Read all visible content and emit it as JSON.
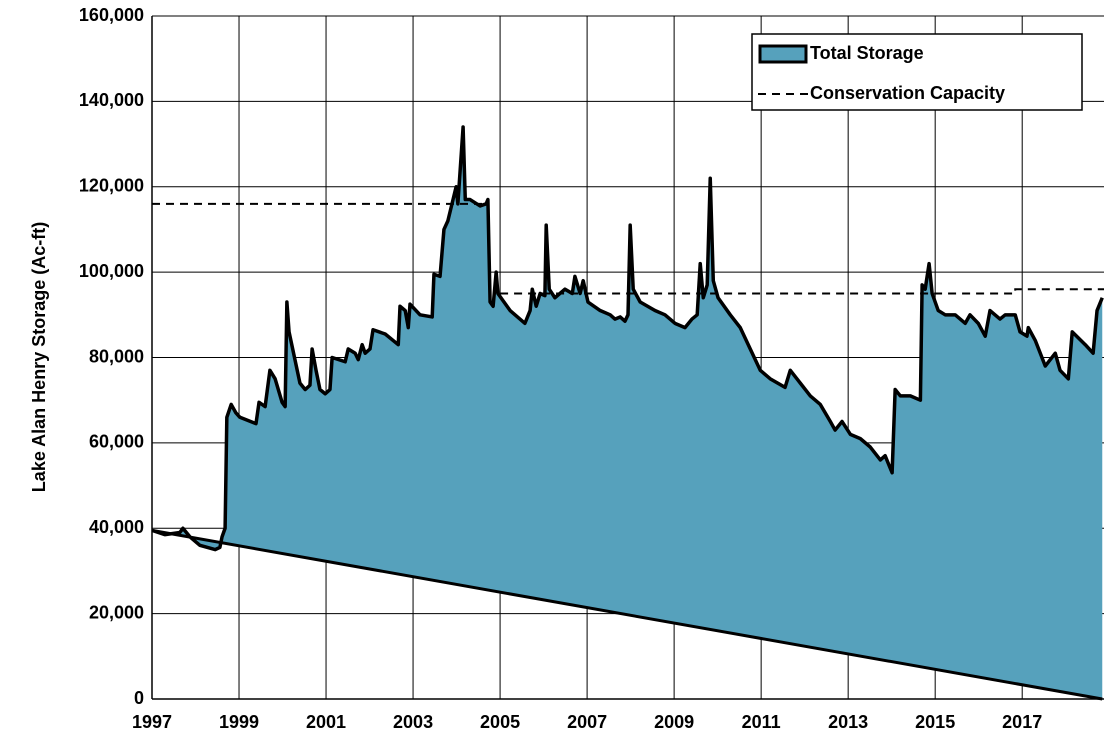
{
  "chart_data": {
    "type": "area",
    "y_label": "Lake Alan Henry Storage (Ac-ft)",
    "xlim": [
      1997,
      2018.88
    ],
    "xticks": [
      1997,
      1999,
      2001,
      2003,
      2005,
      2007,
      2009,
      2011,
      2013,
      2015,
      2017
    ],
    "ylim": [
      0,
      160000
    ],
    "yticks": [
      {
        "value": 0,
        "label": "0"
      },
      {
        "value": 20000,
        "label": "20,000"
      },
      {
        "value": 40000,
        "label": "40,000"
      },
      {
        "value": 60000,
        "label": "60,000"
      },
      {
        "value": 80000,
        "label": "80,000"
      },
      {
        "value": 100000,
        "label": "100,000"
      },
      {
        "value": 120000,
        "label": "120,000"
      },
      {
        "value": 140000,
        "label": "140,000"
      },
      {
        "value": 160000,
        "label": "160,000"
      }
    ],
    "grid": true,
    "legend": "top-right",
    "series": [
      {
        "name": "Total Storage",
        "type": "area",
        "color": "#56a1bc",
        "line_color": "#000000",
        "x": [
          1997.0,
          1997.3,
          1997.64,
          1997.71,
          1997.87,
          1998.1,
          1998.45,
          1998.56,
          1998.61,
          1998.68,
          1998.72,
          1998.82,
          1998.93,
          1999.02,
          1999.39,
          1999.46,
          1999.6,
          1999.71,
          1999.83,
          1999.99,
          2000.06,
          2000.1,
          2000.15,
          2000.4,
          2000.52,
          2000.63,
          2000.68,
          2000.77,
          2000.86,
          2000.98,
          2001.09,
          2001.14,
          2001.44,
          2001.51,
          2001.67,
          2001.74,
          2001.83,
          2001.9,
          2002.01,
          2002.08,
          2002.36,
          2002.66,
          2002.7,
          2002.82,
          2002.89,
          2002.93,
          2003.16,
          2003.44,
          2003.48,
          2003.62,
          2003.71,
          2003.8,
          2003.99,
          2004.03,
          2004.15,
          2004.2,
          2004.31,
          2004.54,
          2004.68,
          2004.72,
          2004.77,
          2004.84,
          2004.91,
          2004.95,
          2005.23,
          2005.57,
          2005.69,
          2005.74,
          2005.83,
          2005.92,
          2006.03,
          2006.06,
          2006.13,
          2006.26,
          2006.49,
          2006.66,
          2006.72,
          2006.84,
          2006.91,
          2007.02,
          2007.3,
          2007.53,
          2007.64,
          2007.76,
          2007.87,
          2007.94,
          2007.99,
          2008.06,
          2008.22,
          2008.56,
          2008.79,
          2009.02,
          2009.25,
          2009.41,
          2009.53,
          2009.6,
          2009.67,
          2009.76,
          2009.83,
          2009.9,
          2010.01,
          2010.29,
          2010.52,
          2010.75,
          2010.98,
          2011.21,
          2011.55,
          2011.67,
          2011.9,
          2012.13,
          2012.36,
          2012.59,
          2012.7,
          2012.86,
          2013.05,
          2013.28,
          2013.51,
          2013.74,
          2013.85,
          2014.01,
          2014.08,
          2014.2,
          2014.43,
          2014.66,
          2014.7,
          2014.77,
          2014.86,
          2014.93,
          2015.07,
          2015.23,
          2015.46,
          2015.69,
          2015.8,
          2015.99,
          2016.15,
          2016.26,
          2016.49,
          2016.61,
          2016.84,
          2016.95,
          2017.11,
          2017.14,
          2017.3,
          2017.53,
          2017.76,
          2017.87,
          2018.06,
          2018.15,
          2018.45,
          2018.63,
          2018.72,
          2018.84
        ],
        "values": [
          39500,
          38500,
          39000,
          40000,
          38000,
          36000,
          35000,
          35500,
          38000,
          40000,
          66000,
          69000,
          67000,
          66000,
          64500,
          69500,
          68500,
          77000,
          75000,
          69500,
          68500,
          93000,
          86000,
          74000,
          72500,
          73500,
          82000,
          77000,
          72500,
          71500,
          72500,
          80000,
          79000,
          82000,
          81000,
          79500,
          83000,
          81000,
          82000,
          86500,
          85500,
          83000,
          92000,
          91000,
          87000,
          92500,
          90000,
          89500,
          99500,
          99000,
          110000,
          112000,
          120000,
          116000,
          134000,
          117000,
          117000,
          115500,
          116000,
          117000,
          93000,
          92000,
          100000,
          95000,
          91000,
          88000,
          91000,
          96000,
          92000,
          95000,
          94500,
          111000,
          96000,
          94000,
          96000,
          95000,
          99000,
          95000,
          98000,
          93000,
          91000,
          90000,
          89000,
          89500,
          88500,
          90000,
          111000,
          96000,
          93000,
          91000,
          90000,
          88000,
          87000,
          89000,
          90000,
          102000,
          94000,
          97000,
          122000,
          98000,
          94000,
          90000,
          87000,
          82000,
          77000,
          75000,
          73000,
          77000,
          74000,
          71000,
          69000,
          65000,
          63000,
          65000,
          62000,
          61000,
          59000,
          56000,
          57000,
          53000,
          72500,
          71000,
          71000,
          70000,
          97000,
          96000,
          102000,
          95000,
          91000,
          90000,
          90000,
          88000,
          90000,
          88000,
          85000,
          91000,
          89000,
          90000,
          90000,
          86000,
          85000,
          87000,
          84000,
          78000,
          81000,
          77000,
          75000,
          86000,
          83000,
          81000,
          91000,
          94000
        ]
      },
      {
        "name": "Conservation Capacity",
        "type": "line",
        "dash": true,
        "color": "#000000",
        "x": [
          1997,
          2004.72,
          2004.86,
          2005.0,
          2016.84,
          2016.84,
          2018.88
        ],
        "values": [
          116000,
          116000,
          null,
          95000,
          95000,
          96000,
          96000
        ]
      }
    ]
  }
}
